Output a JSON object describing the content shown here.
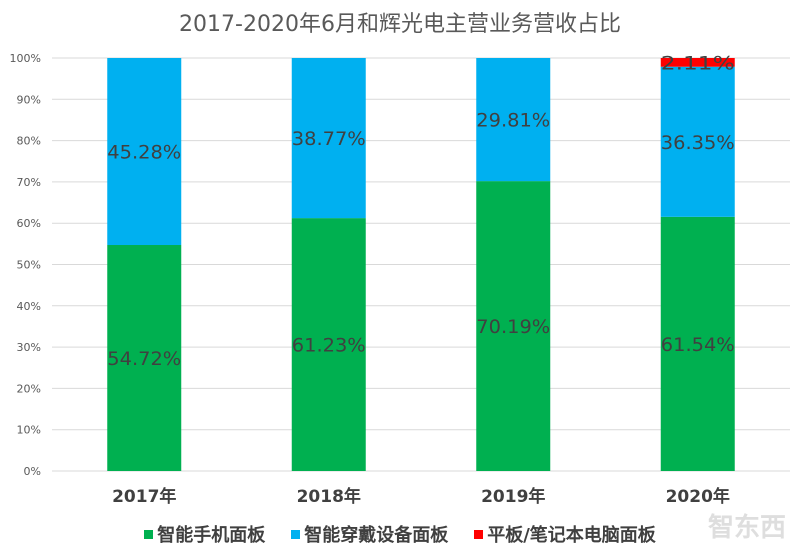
{
  "chart_data": {
    "type": "bar",
    "stacked": true,
    "title": "2017-2020年6月和辉光电主营业务营收占比",
    "categories": [
      "2017年",
      "2018年",
      "2019年",
      "2020年"
    ],
    "series": [
      {
        "name": "智能手机面板",
        "color": "#00B050",
        "values": [
          54.72,
          61.23,
          70.19,
          61.54
        ],
        "labels": [
          "54.72%",
          "61.23%",
          "70.19%",
          "61.54%"
        ]
      },
      {
        "name": "智能穿戴设备面板",
        "color": "#00B0F0",
        "values": [
          45.28,
          38.77,
          29.81,
          36.35
        ],
        "labels": [
          "45.28%",
          "38.77%",
          "29.81%",
          "36.35%"
        ]
      },
      {
        "name": "平板/笔记本电脑面板",
        "color": "#FF0000",
        "values": [
          0,
          0,
          0,
          2.11
        ],
        "labels": [
          "",
          "",
          "",
          "2.11%"
        ]
      }
    ],
    "yticks": [
      "0%",
      "10%",
      "20%",
      "30%",
      "40%",
      "50%",
      "60%",
      "70%",
      "80%",
      "90%",
      "100%"
    ],
    "ylim": [
      0,
      100
    ],
    "grid": true,
    "legend": "bottom"
  },
  "watermark": "智东西"
}
